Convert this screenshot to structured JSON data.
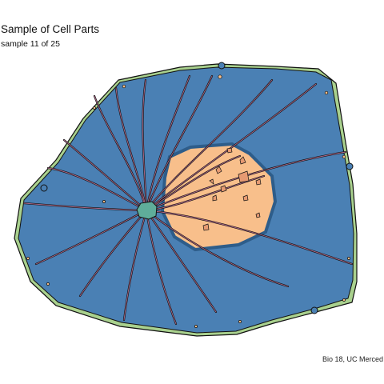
{
  "header": {
    "title": "Sample of Cell Parts",
    "subtitle": "sample 11 of 25"
  },
  "footer": {
    "caption": "Bio 18, UC Merced"
  },
  "colors": {
    "cell_wall": "#a9d18e",
    "cytoplasm": "#4a80b4",
    "nucleus": "#f8bf8b",
    "nucleolus_dots": "#e69a72",
    "centrosome": "#5fad9a",
    "filaments": "#b0698a",
    "outline": "#111111"
  }
}
